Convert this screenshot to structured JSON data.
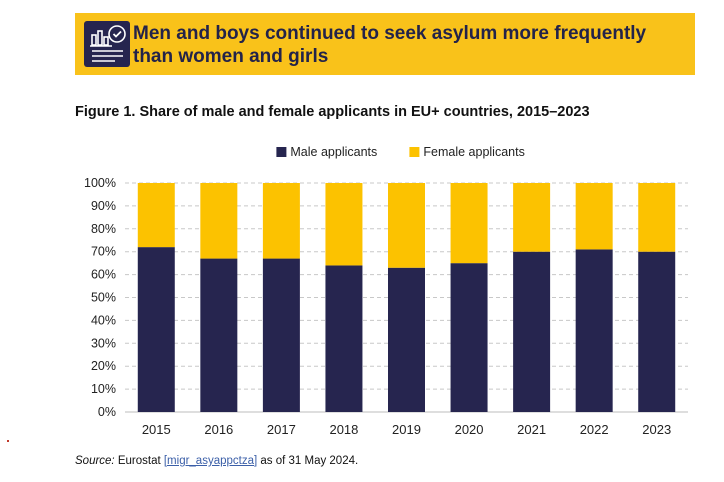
{
  "banner": {
    "title": "Men and boys continued to seek asylum more frequently than women and girls",
    "icon": "chart-report-check-icon",
    "color": "#f9c21a"
  },
  "figure_title": "Figure 1. Share of male and female applicants in EU+ countries, 2015–2023",
  "source": {
    "label": "Source:",
    "text_before": " Eurostat ",
    "link": "[migr_asyappctza]",
    "text_after": " as of 31 May 2024."
  },
  "colors": {
    "male": "#26254f",
    "female": "#fcc200",
    "grid": "#c8c8c8"
  },
  "chart_data": {
    "type": "bar",
    "stacked": true,
    "title": "Figure 1. Share of male and female applicants in EU+ countries, 2015–2023",
    "categories": [
      "2015",
      "2016",
      "2017",
      "2018",
      "2019",
      "2020",
      "2021",
      "2022",
      "2023"
    ],
    "series": [
      {
        "name": "Male applicants",
        "color": "#26254f",
        "values": [
          72,
          67,
          67,
          64,
          63,
          65,
          70,
          71,
          70
        ]
      },
      {
        "name": "Female applicants",
        "color": "#fcc200",
        "values": [
          28,
          33,
          33,
          36,
          37,
          35,
          30,
          29,
          30
        ]
      }
    ],
    "yticks": [
      "0%",
      "10%",
      "20%",
      "30%",
      "40%",
      "50%",
      "60%",
      "70%",
      "80%",
      "90%",
      "100%"
    ],
    "ylim": [
      0,
      100
    ],
    "grid": true,
    "legend_position": "top-center"
  }
}
